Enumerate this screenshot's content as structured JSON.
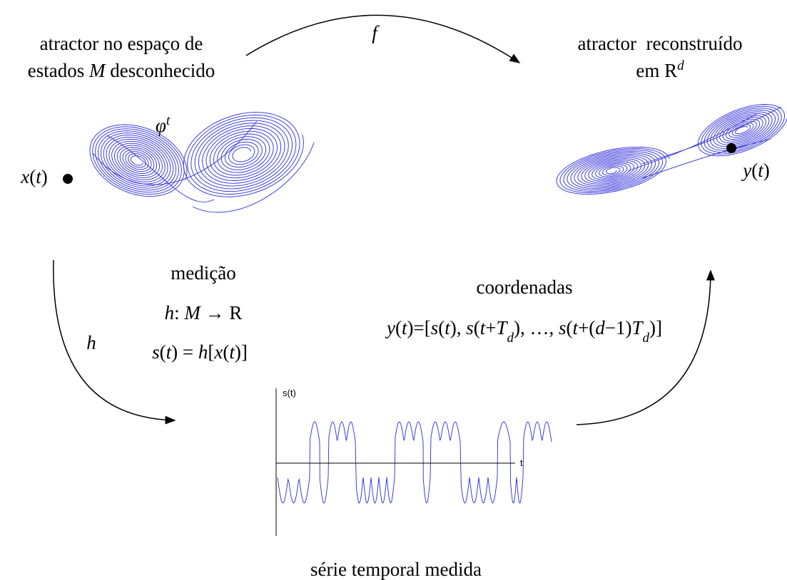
{
  "top_map": {
    "label": "f"
  },
  "state_space": {
    "caption_line1": "atractor no espaço de",
    "caption_line2": [
      "estados ",
      "M",
      " desconhecido"
    ],
    "flow": [
      "φ",
      "t"
    ],
    "point": [
      "x",
      "(",
      "t",
      ")"
    ]
  },
  "reconstruction": {
    "caption_line1": "atractor  reconstruído",
    "caption_line2": [
      "em R",
      "d"
    ],
    "point": [
      "y",
      "(",
      "t",
      ")"
    ]
  },
  "measurement": {
    "title": "medição",
    "map": [
      "h",
      ": ",
      "M",
      " → ",
      "R"
    ],
    "equation": [
      "s",
      "(",
      "t",
      ") = ",
      "h",
      "[",
      "x",
      "(",
      "t",
      ")]"
    ],
    "arrow_label": "h"
  },
  "coordinates": {
    "title": "coordenadas",
    "equation": [
      "y",
      "(",
      "t",
      ")=[",
      "s",
      "(",
      "t",
      "), ",
      "s",
      "(",
      "t",
      "+",
      "T",
      "d",
      "), …, ",
      "s",
      "(",
      "t",
      "+(",
      "d",
      "−1)",
      "T",
      "d",
      ")]"
    ]
  },
  "time_series": {
    "y_label": "s(t)",
    "x_label": "t",
    "caption": "série temporal medida"
  }
}
